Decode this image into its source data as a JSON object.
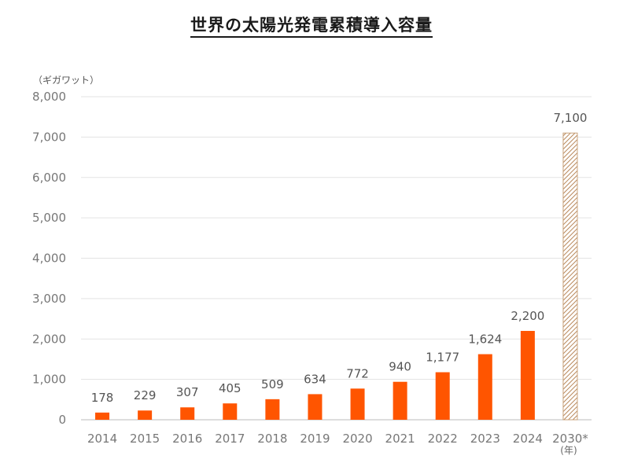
{
  "chart_data": {
    "type": "bar",
    "title": "世界の太陽光発電累積導入容量",
    "unit_label": "（ギガワット）",
    "x_unit_label": "(年)",
    "categories": [
      "2014",
      "2015",
      "2016",
      "2017",
      "2018",
      "2019",
      "2020",
      "2021",
      "2022",
      "2023",
      "2024",
      "2030*"
    ],
    "values": [
      178,
      229,
      307,
      405,
      509,
      634,
      772,
      940,
      1177,
      1624,
      2200,
      7100
    ],
    "value_labels": [
      "178",
      "229",
      "307",
      "405",
      "509",
      "634",
      "772",
      "940",
      "1,177",
      "1,624",
      "2,200",
      "7,100"
    ],
    "ylim": [
      0,
      8000
    ],
    "yticks": [
      0,
      1000,
      2000,
      3000,
      4000,
      5000,
      6000,
      7000,
      8000
    ],
    "ytick_labels": [
      "0",
      "1,000",
      "2,000",
      "3,000",
      "4,000",
      "5,000",
      "6,000",
      "7,000",
      "8,000"
    ],
    "grid": true,
    "bar_color": "#ff5500",
    "projection_color": "#c8a27a",
    "projection_index": 11
  }
}
